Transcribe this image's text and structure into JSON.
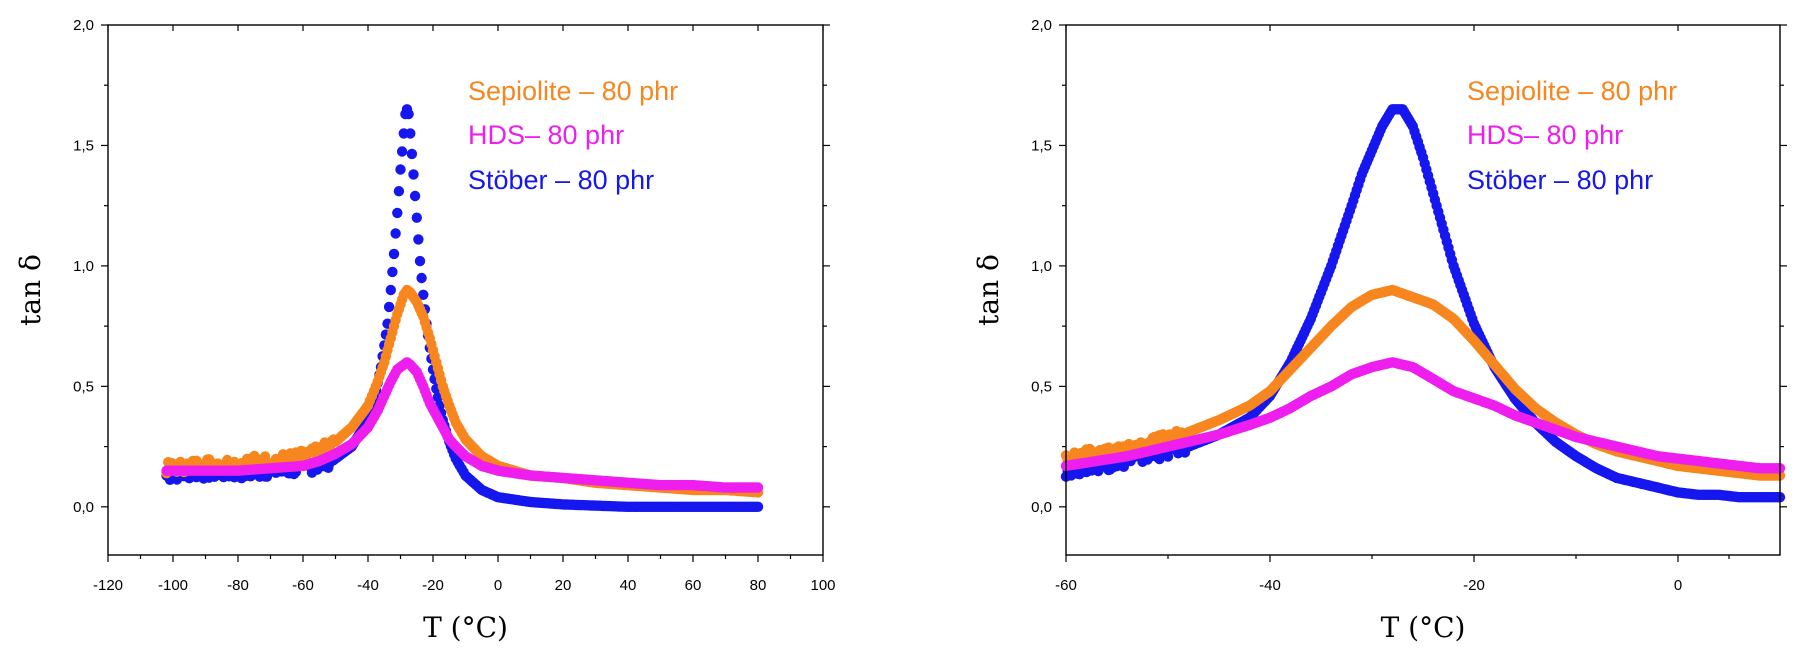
{
  "chart_data": [
    {
      "type": "scatter",
      "title": "",
      "xlabel": "T (°C)",
      "ylabel": "tan δ",
      "xlim": [
        -120,
        100
      ],
      "ylim": [
        -0.2,
        2.0
      ],
      "xticks": [
        "-120",
        "-100",
        "-80",
        "-60",
        "-40",
        "-20",
        "0",
        "20",
        "40",
        "60",
        "80",
        "100"
      ],
      "yticks": [
        "0,0",
        "0,5",
        "1,0",
        "1,5",
        "2,0"
      ],
      "legend_position": "top-right",
      "series": [
        {
          "name": "Sepiolite – 80 phr",
          "color": "#f7861e",
          "x": [
            -102,
            -95,
            -90,
            -85,
            -80,
            -75,
            -70,
            -65,
            -60,
            -55,
            -50,
            -45,
            -40,
            -37,
            -35,
            -33,
            -31,
            -29,
            -28,
            -27,
            -25,
            -23,
            -21,
            -19,
            -17,
            -15,
            -13,
            -10,
            -5,
            0,
            10,
            20,
            30,
            40,
            50,
            60,
            70,
            80
          ],
          "y": [
            0.16,
            0.17,
            0.18,
            0.18,
            0.18,
            0.19,
            0.19,
            0.2,
            0.21,
            0.23,
            0.27,
            0.33,
            0.42,
            0.52,
            0.6,
            0.7,
            0.8,
            0.88,
            0.9,
            0.89,
            0.85,
            0.79,
            0.7,
            0.6,
            0.5,
            0.42,
            0.35,
            0.28,
            0.21,
            0.17,
            0.13,
            0.12,
            0.1,
            0.09,
            0.08,
            0.07,
            0.07,
            0.06
          ]
        },
        {
          "name": "HDS– 80 phr",
          "color": "#ee1fee",
          "x": [
            -102,
            -90,
            -80,
            -70,
            -60,
            -55,
            -50,
            -45,
            -40,
            -37,
            -35,
            -33,
            -31,
            -29,
            -28,
            -27,
            -25,
            -23,
            -21,
            -19,
            -17,
            -15,
            -13,
            -10,
            -5,
            0,
            10,
            20,
            30,
            40,
            50,
            60,
            70,
            80
          ],
          "y": [
            0.15,
            0.15,
            0.15,
            0.16,
            0.17,
            0.19,
            0.22,
            0.26,
            0.33,
            0.4,
            0.46,
            0.52,
            0.57,
            0.59,
            0.6,
            0.59,
            0.56,
            0.5,
            0.43,
            0.38,
            0.33,
            0.28,
            0.25,
            0.21,
            0.17,
            0.15,
            0.13,
            0.12,
            0.11,
            0.1,
            0.09,
            0.09,
            0.08,
            0.08
          ]
        },
        {
          "name": "Stöber – 80 phr",
          "color": "#1616ee",
          "x": [
            -102,
            -95,
            -90,
            -85,
            -80,
            -75,
            -70,
            -65,
            -60,
            -55,
            -50,
            -45,
            -40,
            -38,
            -36,
            -34,
            -33,
            -32,
            -31,
            -30,
            -29,
            -28.5,
            -28,
            -27.5,
            -27,
            -26,
            -25,
            -24,
            -23,
            -22,
            -21,
            -20,
            -19,
            -18,
            -17,
            -15,
            -13,
            -10,
            -5,
            0,
            10,
            20,
            30,
            40,
            50,
            60,
            70,
            80
          ],
          "y": [
            0.13,
            0.14,
            0.14,
            0.14,
            0.14,
            0.14,
            0.15,
            0.15,
            0.16,
            0.17,
            0.2,
            0.25,
            0.36,
            0.45,
            0.58,
            0.76,
            0.9,
            1.05,
            1.22,
            1.4,
            1.55,
            1.63,
            1.65,
            1.63,
            1.55,
            1.38,
            1.2,
            1.02,
            0.88,
            0.76,
            0.66,
            0.57,
            0.49,
            0.42,
            0.36,
            0.27,
            0.2,
            0.13,
            0.07,
            0.04,
            0.02,
            0.01,
            0.005,
            0.0,
            0.0,
            0.0,
            0.0,
            0.0
          ]
        }
      ]
    },
    {
      "type": "scatter",
      "title": "",
      "xlabel": "T (°C)",
      "ylabel": "tan δ",
      "xlim": [
        -60,
        10
      ],
      "ylim": [
        -0.2,
        2.0
      ],
      "xticks": [
        "-60",
        "-40",
        "-20",
        "0"
      ],
      "yticks": [
        "0,0",
        "0,5",
        "1,0",
        "1,5",
        "2,0"
      ],
      "legend_position": "top-right",
      "series": [
        {
          "name": "Sepiolite – 80 phr",
          "color": "#f7861e",
          "x": [
            -60,
            -57,
            -54,
            -51,
            -48,
            -45,
            -42,
            -40,
            -38,
            -36,
            -34,
            -32,
            -30,
            -28,
            -26,
            -24,
            -22,
            -20,
            -18,
            -16,
            -14,
            -12,
            -10,
            -8,
            -6,
            -4,
            -2,
            0,
            2,
            4,
            6,
            8,
            10
          ],
          "y": [
            0.2,
            0.22,
            0.24,
            0.27,
            0.31,
            0.36,
            0.42,
            0.48,
            0.57,
            0.66,
            0.75,
            0.83,
            0.88,
            0.9,
            0.87,
            0.84,
            0.78,
            0.69,
            0.59,
            0.49,
            0.41,
            0.35,
            0.3,
            0.26,
            0.23,
            0.21,
            0.19,
            0.17,
            0.16,
            0.15,
            0.14,
            0.13,
            0.13
          ]
        },
        {
          "name": "HDS– 80 phr",
          "color": "#ee1fee",
          "x": [
            -60,
            -57,
            -54,
            -51,
            -48,
            -45,
            -42,
            -40,
            -38,
            -36,
            -34,
            -32,
            -30,
            -28,
            -26,
            -24,
            -22,
            -20,
            -18,
            -16,
            -14,
            -12,
            -10,
            -8,
            -6,
            -4,
            -2,
            0,
            2,
            4,
            6,
            8,
            10
          ],
          "y": [
            0.17,
            0.19,
            0.21,
            0.24,
            0.27,
            0.3,
            0.34,
            0.37,
            0.41,
            0.46,
            0.5,
            0.55,
            0.58,
            0.6,
            0.58,
            0.53,
            0.48,
            0.45,
            0.42,
            0.38,
            0.35,
            0.32,
            0.29,
            0.27,
            0.25,
            0.23,
            0.21,
            0.2,
            0.19,
            0.18,
            0.17,
            0.16,
            0.16
          ]
        },
        {
          "name": "Stöber – 80 phr",
          "color": "#1616ee",
          "x": [
            -60,
            -57,
            -54,
            -51,
            -48,
            -45,
            -42,
            -40,
            -38,
            -36,
            -34,
            -32,
            -31,
            -30,
            -29,
            -28,
            -27,
            -26,
            -25,
            -24,
            -23,
            -22,
            -21,
            -20,
            -18,
            -16,
            -14,
            -12,
            -10,
            -8,
            -6,
            -4,
            -2,
            0,
            2,
            4,
            6,
            8,
            10
          ],
          "y": [
            0.15,
            0.17,
            0.19,
            0.22,
            0.25,
            0.3,
            0.37,
            0.46,
            0.6,
            0.78,
            1.0,
            1.25,
            1.38,
            1.48,
            1.58,
            1.65,
            1.65,
            1.58,
            1.45,
            1.3,
            1.15,
            1.0,
            0.88,
            0.76,
            0.58,
            0.45,
            0.35,
            0.27,
            0.21,
            0.16,
            0.12,
            0.1,
            0.08,
            0.06,
            0.05,
            0.05,
            0.04,
            0.04,
            0.04
          ]
        }
      ]
    }
  ]
}
